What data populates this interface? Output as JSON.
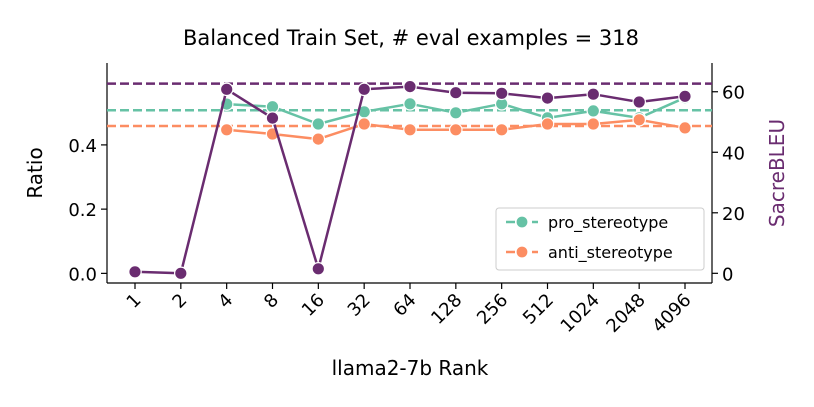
{
  "chart_data": {
    "type": "line",
    "title": "Balanced Train Set, # eval examples = 318",
    "xlabel": "llama2-7b Rank",
    "ylabel_left": "Ratio",
    "ylabel_right": "SacreBLEU",
    "categories": [
      "1",
      "2",
      "4",
      "8",
      "16",
      "32",
      "64",
      "128",
      "256",
      "512",
      "1024",
      "2048",
      "4096"
    ],
    "ylim_left": [
      -0.03,
      0.655
    ],
    "ylim_right": [
      -3.2,
      69.5
    ],
    "yticks_left": [
      0.0,
      0.2,
      0.4
    ],
    "yticks_left_labels": [
      "0.0",
      "0.2",
      "0.4"
    ],
    "yticks_right": [
      0,
      20,
      40,
      60
    ],
    "yticks_right_labels": [
      "0",
      "20",
      "40",
      "60"
    ],
    "legend_position": "lower-right",
    "series": [
      {
        "name": "pro_stereotype",
        "axis": "left",
        "color": "#66c2a5",
        "values": [
          null,
          null,
          0.527,
          0.519,
          0.465,
          0.503,
          0.528,
          0.5,
          0.528,
          0.484,
          0.506,
          0.484,
          0.547
        ],
        "reference": 0.508
      },
      {
        "name": "anti_stereotype",
        "axis": "left",
        "color": "#fc8d62",
        "values": [
          null,
          null,
          0.447,
          0.434,
          0.418,
          0.465,
          0.447,
          0.447,
          0.447,
          0.465,
          0.465,
          0.478,
          0.453
        ],
        "reference": 0.459
      },
      {
        "name": "SacreBLEU",
        "axis": "right",
        "color": "#6a2c70",
        "values": [
          0.5,
          0.0,
          60.8,
          51.3,
          1.5,
          60.8,
          61.7,
          59.7,
          59.5,
          57.9,
          59.2,
          56.6,
          58.5
        ],
        "reference": 62.7
      }
    ]
  }
}
